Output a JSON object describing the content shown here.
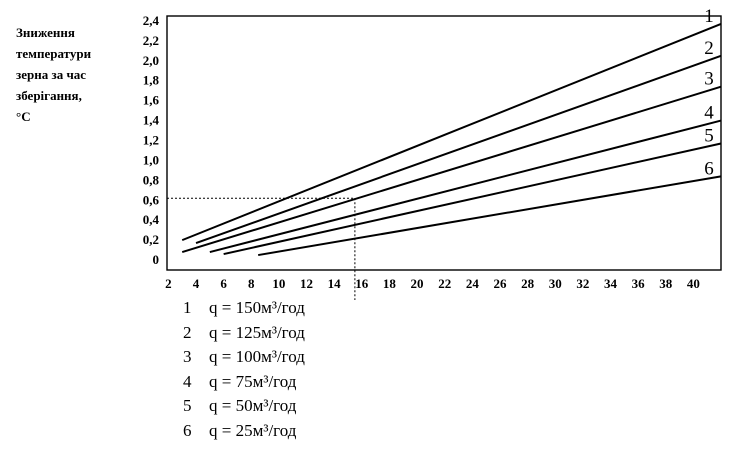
{
  "chart_data": {
    "type": "line",
    "ylabel_lines": [
      "Зниження",
      "температури",
      "зерна за час",
      "зберігання,",
      "°С"
    ],
    "x_ticks": [
      "2",
      "4",
      "6",
      "8",
      "10",
      "12",
      "14",
      "16",
      "18",
      "20",
      "22",
      "24",
      "26",
      "28",
      "30",
      "32",
      "34",
      "36",
      "38",
      "40"
    ],
    "y_ticks": [
      "0",
      "0,2",
      "0,4",
      "0,6",
      "0,8",
      "1,0",
      "1,2",
      "1,4",
      "1,6",
      "1,8",
      "2,0",
      "2,2",
      "2,4"
    ],
    "xlim": [
      1.9,
      42
    ],
    "ylim": [
      -0.1,
      2.45
    ],
    "grid": false,
    "series": [
      {
        "name": "1",
        "x": [
          3,
          42
        ],
        "y": [
          0.2,
          2.37
        ]
      },
      {
        "name": "2",
        "x": [
          4,
          42
        ],
        "y": [
          0.17,
          2.05
        ]
      },
      {
        "name": "3",
        "x": [
          3,
          42
        ],
        "y": [
          0.08,
          1.74
        ]
      },
      {
        "name": "4",
        "x": [
          5,
          42
        ],
        "y": [
          0.08,
          1.4
        ]
      },
      {
        "name": "5",
        "x": [
          6,
          42
        ],
        "y": [
          0.06,
          1.17
        ]
      },
      {
        "name": "6",
        "x": [
          8.5,
          42
        ],
        "y": [
          0.05,
          0.84
        ]
      }
    ],
    "annotation": {
      "type": "dashed-guide",
      "x": 15.5,
      "y": 0.62
    }
  },
  "legend": [
    {
      "num": "1",
      "text": "q = 150м³/год"
    },
    {
      "num": "2",
      "text": "q = 125м³/год"
    },
    {
      "num": "3",
      "text": "q = 100м³/год"
    },
    {
      "num": "4",
      "text": "q = 75м³/год"
    },
    {
      "num": "5",
      "text": "q = 50м³/год"
    },
    {
      "num": "6",
      "text": "q = 25м³/год"
    }
  ]
}
